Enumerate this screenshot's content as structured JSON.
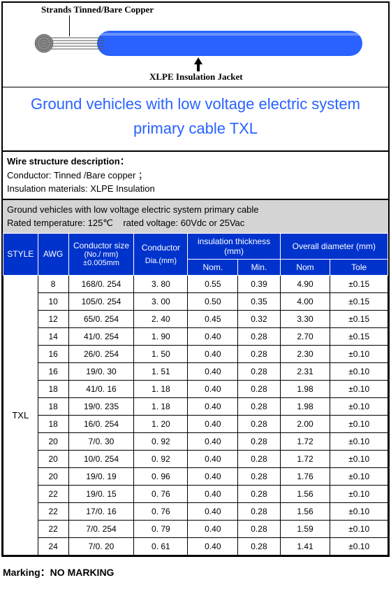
{
  "diagram": {
    "strand_label": "Strands Tinned/Bare Copper",
    "xlpe_label": "XLPE Insulation Jacket",
    "cable_color": "#2962ff"
  },
  "title": "Ground vehicles with low voltage electric system primary cable TXL",
  "wire_desc": {
    "header": "Wire structure description：",
    "line1": "Conductor: Tinned /Bare copper ；",
    "line2": "Insulation materials: XLPE Insulation"
  },
  "spec_header": {
    "line1": "Ground vehicles with low voltage electric system primary cable",
    "line2": "Rated temperature: 125℃    rated voltage: 60Vdc or 25Vac"
  },
  "table": {
    "headers": {
      "style": "STYLE",
      "awg": "AWG",
      "cond_size": "Conductor size",
      "cond_size_sub": "(No./ mm) ±0.005mm",
      "cond_dia": "Conductor",
      "cond_dia_sub": "Dia.(mm)",
      "ins": "insulation thickness (mm)",
      "ins_nom": "Nom.",
      "ins_min": "Min.",
      "od": "Overall diameter (mm)",
      "od_nom": "Nom",
      "od_tole": "Tole"
    },
    "style_value": "TXL",
    "rows": [
      {
        "awg": "8",
        "size": "168/0. 254",
        "dia": "3. 80",
        "inom": "0.55",
        "imin": "0.39",
        "onom": "4.90",
        "tole": "±0.15"
      },
      {
        "awg": "10",
        "size": "105/0. 254",
        "dia": "3. 00",
        "inom": "0.50",
        "imin": "0.35",
        "onom": "4.00",
        "tole": "±0.15"
      },
      {
        "awg": "12",
        "size": "65/0. 254",
        "dia": "2. 40",
        "inom": "0.45",
        "imin": "0.32",
        "onom": "3.30",
        "tole": "±0.15"
      },
      {
        "awg": "14",
        "size": "41/0. 254",
        "dia": "1. 90",
        "inom": "0.40",
        "imin": "0.28",
        "onom": "2.70",
        "tole": "±0.15"
      },
      {
        "awg": "16",
        "size": "26/0. 254",
        "dia": "1. 50",
        "inom": "0.40",
        "imin": "0.28",
        "onom": "2.30",
        "tole": "±0.10"
      },
      {
        "awg": "16",
        "size": "19/0. 30",
        "dia": "1. 51",
        "inom": "0.40",
        "imin": "0.28",
        "onom": "2.31",
        "tole": "±0.10"
      },
      {
        "awg": "18",
        "size": "41/0. 16",
        "dia": "1. 18",
        "inom": "0.40",
        "imin": "0.28",
        "onom": "1.98",
        "tole": "±0.10"
      },
      {
        "awg": "18",
        "size": "19/0. 235",
        "dia": "1. 18",
        "inom": "0.40",
        "imin": "0.28",
        "onom": "1.98",
        "tole": "±0.10"
      },
      {
        "awg": "18",
        "size": "16/0. 254",
        "dia": "1. 20",
        "inom": "0.40",
        "imin": "0.28",
        "onom": "2.00",
        "tole": "±0.10"
      },
      {
        "awg": "20",
        "size": "7/0. 30",
        "dia": "0. 92",
        "inom": "0.40",
        "imin": "0.28",
        "onom": "1.72",
        "tole": "±0.10"
      },
      {
        "awg": "20",
        "size": "10/0. 254",
        "dia": "0. 92",
        "inom": "0.40",
        "imin": "0.28",
        "onom": "1.72",
        "tole": "±0.10"
      },
      {
        "awg": "20",
        "size": "19/0. 19",
        "dia": "0. 96",
        "inom": "0.40",
        "imin": "0.28",
        "onom": "1.76",
        "tole": "±0.10"
      },
      {
        "awg": "22",
        "size": "19/0. 15",
        "dia": "0. 76",
        "inom": "0.40",
        "imin": "0.28",
        "onom": "1.56",
        "tole": "±0.10"
      },
      {
        "awg": "22",
        "size": "17/0. 16",
        "dia": "0. 76",
        "inom": "0.40",
        "imin": "0.28",
        "onom": "1.56",
        "tole": "±0.10"
      },
      {
        "awg": "22",
        "size": "7/0. 254",
        "dia": "0. 79",
        "inom": "0.40",
        "imin": "0.28",
        "onom": "1.59",
        "tole": "±0.10"
      },
      {
        "awg": "24",
        "size": "7/0. 20",
        "dia": "0. 61",
        "inom": "0.40",
        "imin": "0.28",
        "onom": "1.41",
        "tole": "±0.10"
      }
    ]
  },
  "marking": "Marking：NO MARKING"
}
